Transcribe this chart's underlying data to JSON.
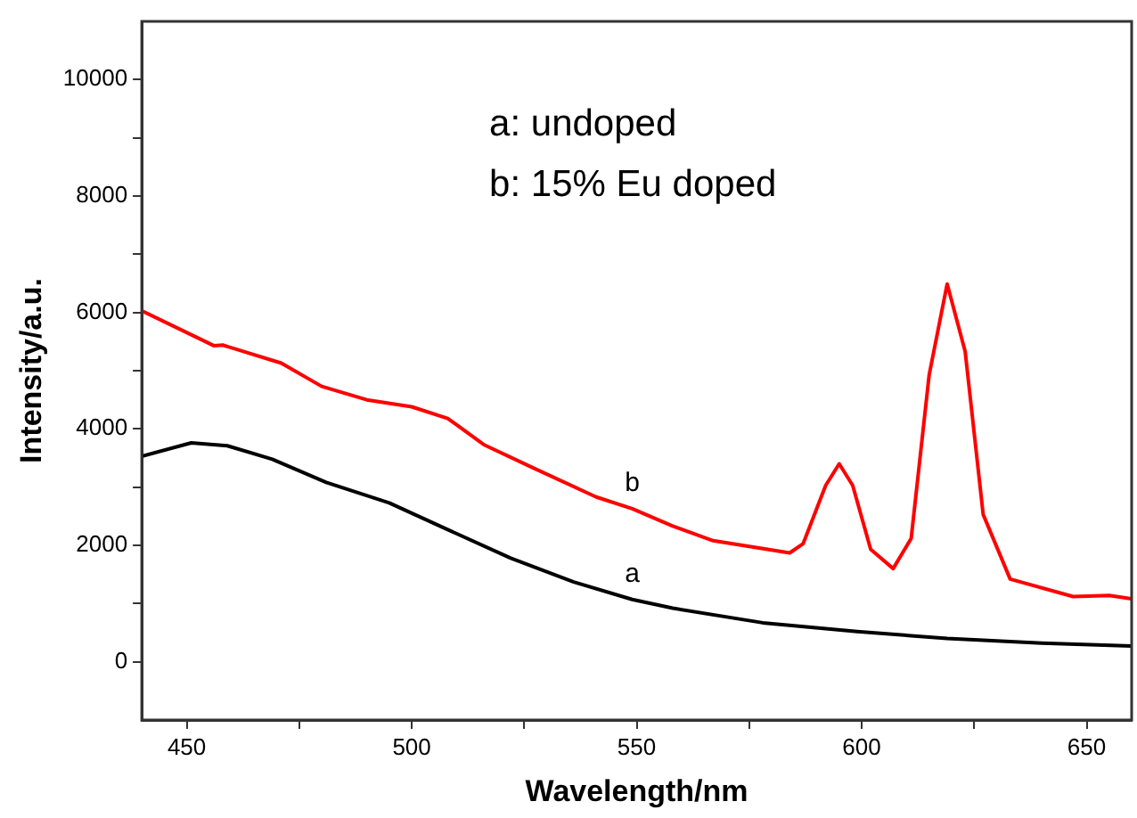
{
  "chart_data": {
    "type": "line",
    "xlabel": "Wavelength/nm",
    "ylabel": "Intensity/a.u.",
    "xlim": [
      440,
      660
    ],
    "ylim": [
      -1000,
      11000
    ],
    "xticks": [
      450,
      {
        "value": 475,
        "label": null
      },
      500,
      {
        "value": 525,
        "label": null
      },
      550,
      {
        "value": 575,
        "label": null
      },
      600,
      {
        "value": 625,
        "label": null
      },
      650
    ],
    "yticks": [
      0,
      {
        "value": 1000,
        "label": null
      },
      2000,
      {
        "value": 3000,
        "label": null
      },
      4000,
      {
        "value": 5000,
        "label": null
      },
      6000,
      {
        "value": 7000,
        "label": null
      },
      8000,
      {
        "value": 9000,
        "label": null
      },
      10000
    ],
    "grid": false,
    "legend": false,
    "marker": "none",
    "line_style": "solid",
    "series": [
      {
        "name": "a",
        "color": "#000000",
        "x": [
          440,
          451,
          459,
          469,
          481,
          495,
          508,
          522,
          536,
          549,
          558,
          578,
          599,
          619,
          640,
          660
        ],
        "values": [
          3530,
          3760,
          3710,
          3480,
          3080,
          2730,
          2270,
          1780,
          1370,
          1070,
          920,
          670,
          520,
          400,
          320,
          270
        ]
      },
      {
        "name": "b",
        "color": "#ff0000",
        "x": [
          440,
          456,
          458,
          471,
          480,
          490,
          500,
          508,
          516,
          527,
          541,
          549,
          558,
          567,
          584,
          587,
          592,
          595,
          598,
          602,
          607,
          611,
          615,
          619,
          623,
          627,
          633,
          647,
          655,
          660
        ],
        "values": [
          6030,
          5430,
          5440,
          5130,
          4730,
          4500,
          4380,
          4180,
          3730,
          3330,
          2830,
          2630,
          2330,
          2080,
          1870,
          2030,
          3030,
          3400,
          3030,
          1930,
          1600,
          2120,
          4930,
          6490,
          5330,
          2530,
          1420,
          1120,
          1140,
          1080
        ]
      }
    ],
    "annotations": [
      "a: undoped",
      "b: 15% Eu doped"
    ]
  }
}
